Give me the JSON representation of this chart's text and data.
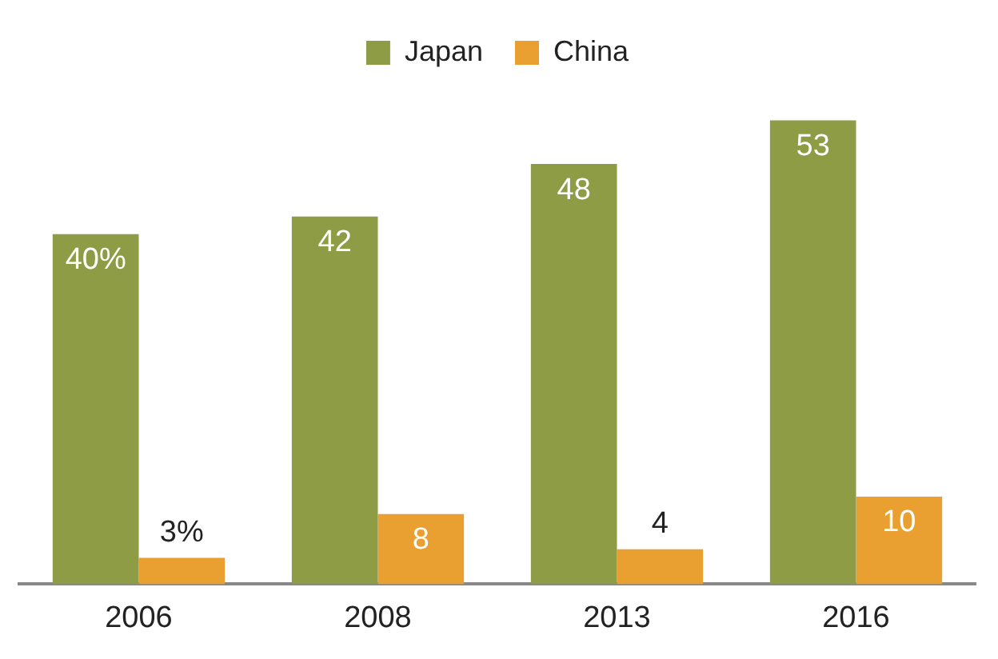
{
  "chart_data": {
    "type": "bar",
    "categories": [
      "2006",
      "2008",
      "2013",
      "2016"
    ],
    "series": [
      {
        "name": "Japan",
        "color": "#8f9c46",
        "values": [
          40,
          42,
          48,
          53
        ],
        "value_labels": [
          "40%",
          "42",
          "48",
          "53"
        ]
      },
      {
        "name": "China",
        "color": "#eaa030",
        "values": [
          3,
          8,
          4,
          10
        ],
        "value_labels": [
          "3%",
          "8",
          "4",
          "10"
        ]
      }
    ],
    "grid": false,
    "legend": "top"
  }
}
